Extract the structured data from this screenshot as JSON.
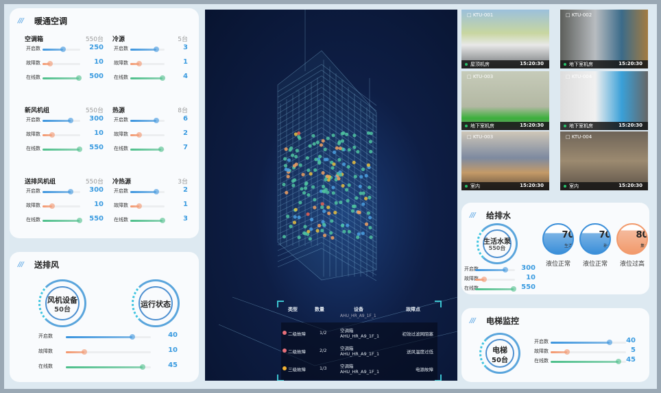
{
  "hvac": {
    "title": "暖通空调",
    "groups": [
      {
        "name": "空调箱",
        "count": "550台",
        "rows": [
          {
            "label": "开启数",
            "value": "250",
            "fill": 55
          },
          {
            "label": "故障数",
            "value": "10",
            "fill": 20
          },
          {
            "label": "在线数",
            "value": "500",
            "fill": 96
          }
        ]
      },
      {
        "name": "冷源",
        "count": "5台",
        "rows": [
          {
            "label": "开启数",
            "value": "3",
            "fill": 75
          },
          {
            "label": "故障数",
            "value": "1",
            "fill": 25
          },
          {
            "label": "在线数",
            "value": "4",
            "fill": 93
          }
        ]
      },
      {
        "name": "新风机组",
        "count": "550台",
        "rows": [
          {
            "label": "开启数",
            "value": "300",
            "fill": 75
          },
          {
            "label": "故障数",
            "value": "10",
            "fill": 25
          },
          {
            "label": "在线数",
            "value": "550",
            "fill": 98
          }
        ]
      },
      {
        "name": "热源",
        "count": "8台",
        "rows": [
          {
            "label": "开启数",
            "value": "6",
            "fill": 75
          },
          {
            "label": "故障数",
            "value": "2",
            "fill": 25
          },
          {
            "label": "在线数",
            "value": "7",
            "fill": 90
          }
        ]
      },
      {
        "name": "送排风机组",
        "count": "550台",
        "rows": [
          {
            "label": "开启数",
            "value": "300",
            "fill": 75
          },
          {
            "label": "故障数",
            "value": "10",
            "fill": 25
          },
          {
            "label": "在线数",
            "value": "550",
            "fill": 98
          }
        ]
      },
      {
        "name": "冷热源",
        "count": "3台",
        "rows": [
          {
            "label": "开启数",
            "value": "2",
            "fill": 75
          },
          {
            "label": "故障数",
            "value": "1",
            "fill": 25
          },
          {
            "label": "在线数",
            "value": "3",
            "fill": 93
          }
        ]
      }
    ]
  },
  "ventilation": {
    "title": "送排风",
    "fan_label": "风机设备",
    "fan_count": "50台",
    "status_label": "运行状态",
    "rows": [
      {
        "label": "开启数",
        "value": "40",
        "fill": 78
      },
      {
        "label": "故障数",
        "value": "10",
        "fill": 22
      },
      {
        "label": "在线数",
        "value": "45",
        "fill": 90
      }
    ]
  },
  "faults": {
    "headers": [
      "类型",
      "数量",
      "设备",
      "故障点"
    ],
    "overflow_device": "AHU_HR_A9_1F_1",
    "rows": [
      {
        "type": "二级故障",
        "color": "#e8707a",
        "qty": "1/2",
        "device_name": "空调箱",
        "device_id": "AHU_HR_A9_1F_1",
        "point": "初效过滤网阻塞"
      },
      {
        "type": "二级故障",
        "color": "#e8707a",
        "qty": "2/2",
        "device_name": "空调箱",
        "device_id": "AHU_HR_A9_1F_1",
        "point": "送风温度过低"
      },
      {
        "type": "三级故障",
        "color": "#f2b233",
        "qty": "1/3",
        "device_name": "空调箱",
        "device_id": "AHU_HR_A9_1F_1",
        "point": "电源故障"
      }
    ]
  },
  "cameras": [
    {
      "id": "KTU-001",
      "location": "屋顶机房",
      "time": "15:20:30"
    },
    {
      "id": "KTU-002",
      "location": "地下室机房",
      "time": "15:20:30"
    },
    {
      "id": "KTU-003",
      "location": "地下室机房",
      "time": "15:20:30"
    },
    {
      "id": "KTU-004",
      "location": "地下室机房",
      "time": "15:20:30"
    },
    {
      "id": "KTU-003",
      "location": "室内",
      "time": "15:20:30"
    },
    {
      "id": "KTU-004",
      "location": "室内",
      "time": "15:20:30"
    }
  ],
  "water": {
    "title": "给排水",
    "pump_label": "生活水泵",
    "pump_count": "550台",
    "rows": [
      {
        "label": "开启数",
        "value": "300",
        "fill": 75
      },
      {
        "label": "故障数",
        "value": "10",
        "fill": 22
      },
      {
        "label": "在线数",
        "value": "550",
        "fill": 96
      }
    ],
    "tanks": [
      {
        "percent": "70%",
        "level": 70,
        "name": "生活水箱",
        "status": "液位正常",
        "color": "#3b8fd9"
      },
      {
        "percent": "70%",
        "level": 70,
        "name": "补水箱",
        "status": "液位正常",
        "color": "#3b8fd9"
      },
      {
        "percent": "80%",
        "level": 80,
        "name": "集水坑",
        "status": "液位过高",
        "color": "#f29a6c"
      }
    ]
  },
  "elevator": {
    "title": "电梯监控",
    "label": "电梯",
    "count": "50台",
    "rows": [
      {
        "label": "开启数",
        "value": "40",
        "fill": 78
      },
      {
        "label": "故障数",
        "value": "5",
        "fill": 22
      },
      {
        "label": "在线数",
        "value": "45",
        "fill": 90
      }
    ]
  },
  "colors": {
    "open": "#3a94de",
    "fault": "#f4956a",
    "online": "#4cbf8a",
    "accent": "#3a9be0"
  }
}
